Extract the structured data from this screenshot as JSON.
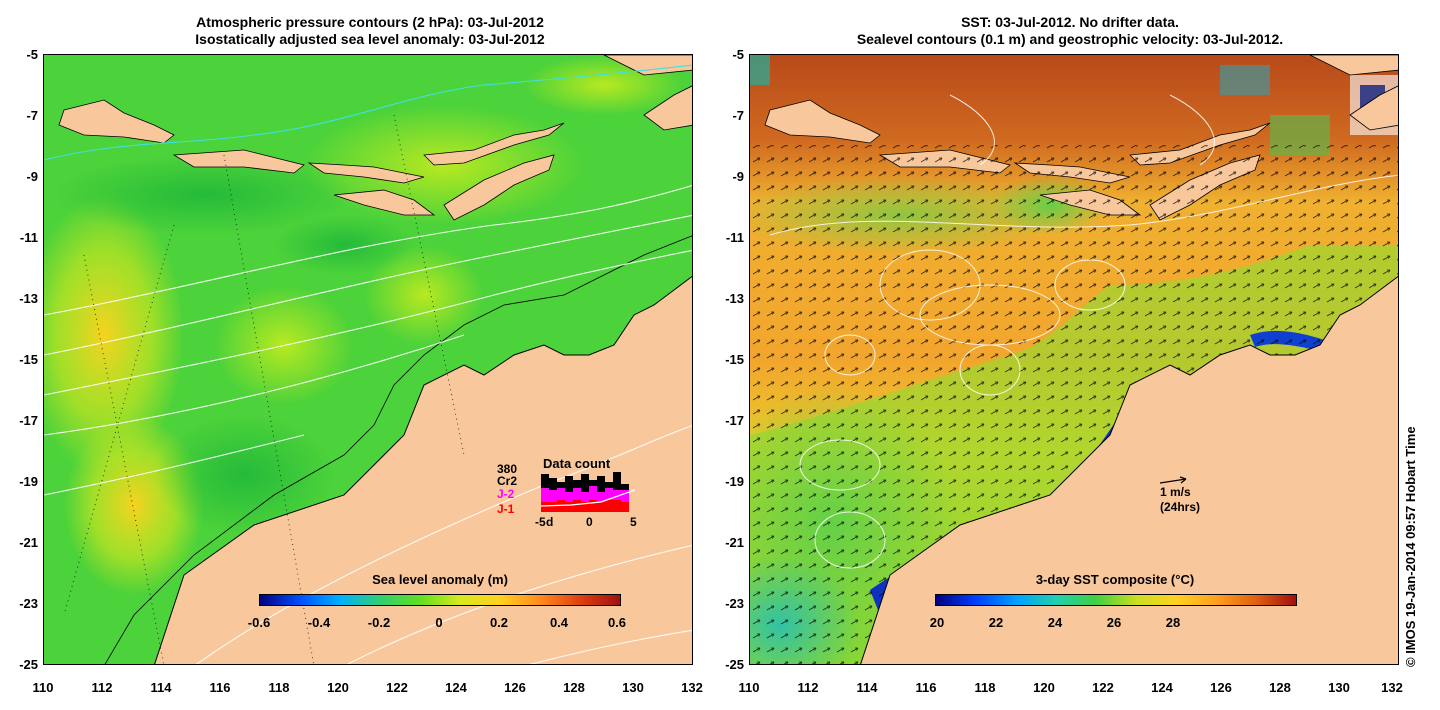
{
  "left": {
    "title_line1": "Atmospheric pressure contours (2 hPa): 03-Jul-2012",
    "title_line2": "Isostatically adjusted sea level anomaly: 03-Jul-2012",
    "colorbar": {
      "label": "Sea level anomaly (m)",
      "ticks": [
        "-0.6",
        "-0.4",
        "-0.2",
        "0",
        "0.2",
        "0.4",
        "0.6"
      ]
    },
    "data_count": {
      "title": "Data count",
      "count": "380",
      "satellites": [
        "Cr2",
        "J-2",
        "J-1"
      ],
      "satellite_colors": [
        "#000000",
        "#ff00ff",
        "#ff0000"
      ],
      "x_ticks": [
        "-5",
        "d",
        "0",
        "5"
      ]
    }
  },
  "right": {
    "title_line1": "SST: 03-Jul-2012. No drifter data.",
    "title_line2": "Sealevel contours (0.1 m) and geostrophic velocity: 03-Jul-2012.",
    "colorbar": {
      "label": "3-day SST composite (°C)",
      "ticks": [
        "20",
        "22",
        "24",
        "26",
        "28"
      ]
    },
    "scale_vector": {
      "label": "1 m/s",
      "sublabel": "(24hrs)"
    }
  },
  "axes": {
    "y_ticks": [
      "-5",
      "-7",
      "-9",
      "-11",
      "-13",
      "-15",
      "-17",
      "-19",
      "-21",
      "-23",
      "-25"
    ],
    "x_ticks": [
      "110",
      "112",
      "114",
      "116",
      "118",
      "120",
      "122",
      "124",
      "126",
      "128",
      "130",
      "132"
    ]
  },
  "credit": "© IMOS 19-Jan-2014 09:57 Hobart Time",
  "colors": {
    "land": "#f8c89c",
    "sla_ocean": "#4cd23a",
    "sst_ocean": "#f2a52e"
  }
}
